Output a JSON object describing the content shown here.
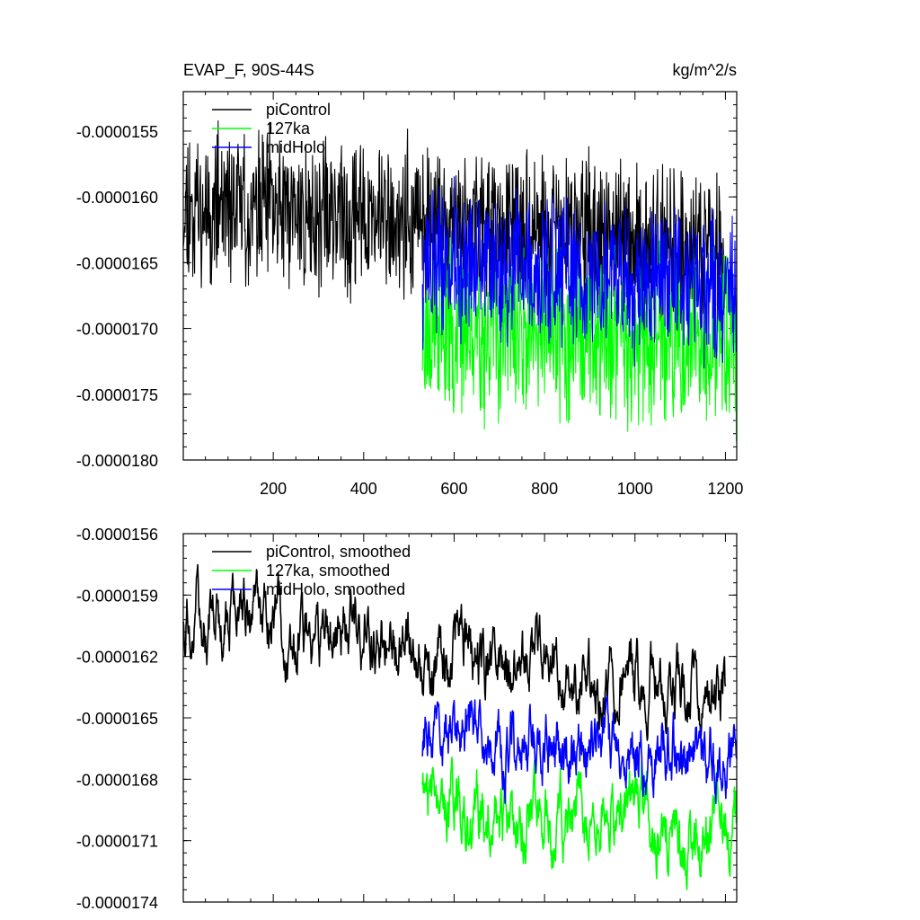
{
  "chart_data": [
    {
      "type": "line",
      "title": "EVAP_F, 90S-44S",
      "units": "kg/m^2/s",
      "xlabel": "",
      "ylabel": "",
      "xlim": [
        1,
        1225
      ],
      "ylim": [
        -1.8e-05,
        -1.52e-05
      ],
      "x_ticks": [
        200,
        400,
        600,
        800,
        1000,
        1200
      ],
      "x_tick_labels": [
        "200",
        "400",
        "600",
        "800",
        "1000",
        "1200"
      ],
      "y_ticks": [
        -1.55e-05,
        -1.6e-05,
        -1.65e-05,
        -1.7e-05,
        -1.75e-05,
        -1.8e-05
      ],
      "y_tick_labels": [
        "-0.0000155",
        "-0.0000160",
        "-0.0000165",
        "-0.0000170",
        "-0.0000175",
        "-0.0000180"
      ],
      "legend_position": "top-left",
      "series": [
        {
          "name": "piControl",
          "color": "#000000",
          "x_range": [
            1,
            1200
          ],
          "start": -1.605e-05,
          "end": -1.64e-05,
          "noise": 4.5e-07,
          "seed": 11
        },
        {
          "name": "127ka",
          "color": "#00ff00",
          "x_range": [
            530,
            1225
          ],
          "start": -1.7e-05,
          "end": -1.71e-05,
          "noise": 5e-07,
          "seed": 23
        },
        {
          "name": "midHolo",
          "color": "#0000ff",
          "x_range": [
            530,
            1225
          ],
          "start": -1.65e-05,
          "end": -1.67e-05,
          "noise": 4.5e-07,
          "seed": 37
        }
      ]
    },
    {
      "type": "line",
      "title": "",
      "xlabel": "",
      "ylabel": "",
      "xlim": [
        1,
        1225
      ],
      "ylim": [
        -1.74e-05,
        -1.56e-05
      ],
      "x_ticks": [
        200,
        400,
        600,
        800,
        1000,
        1200
      ],
      "y_ticks": [
        -1.56e-05,
        -1.59e-05,
        -1.62e-05,
        -1.65e-05,
        -1.68e-05,
        -1.71e-05,
        -1.74e-05
      ],
      "y_tick_labels": [
        "-0.0000156",
        "-0.0000159",
        "-0.0000162",
        "-0.0000165",
        "-0.0000168",
        "-0.0000171",
        "-0.0000174"
      ],
      "legend_position": "top-left",
      "series": [
        {
          "name": "piControl, smoothed",
          "color": "#000000",
          "x_range": [
            1,
            1200
          ],
          "start": -1.598e-05,
          "end": -1.64e-05,
          "noise": 1.8e-07,
          "seed": 5
        },
        {
          "name": "127ka, smoothed",
          "color": "#00ff00",
          "x_range": [
            530,
            1225
          ],
          "start": -1.69e-05,
          "end": -1.71e-05,
          "noise": 2e-07,
          "seed": 19
        },
        {
          "name": "midHolo, smoothed",
          "color": "#0000ff",
          "x_range": [
            530,
            1225
          ],
          "start": -1.66e-05,
          "end": -1.67e-05,
          "noise": 1.8e-07,
          "seed": 31
        }
      ]
    }
  ]
}
